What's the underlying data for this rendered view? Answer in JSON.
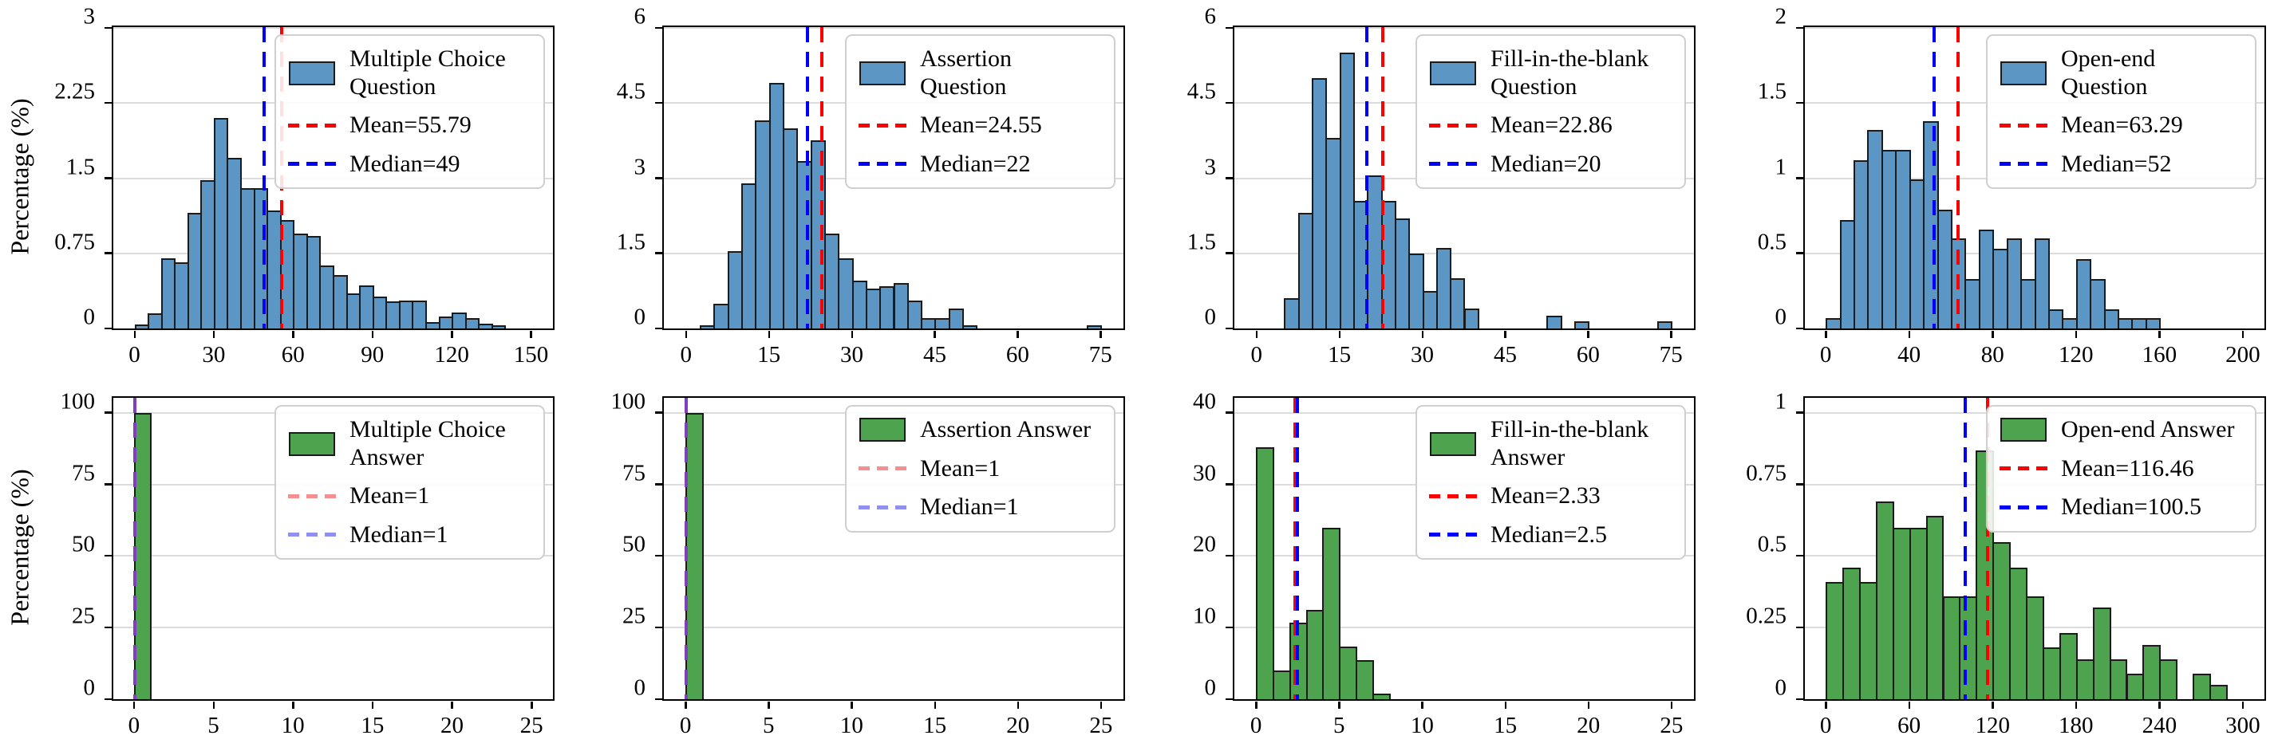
{
  "figure": {
    "ylabel": "Percentage (%)",
    "colors": {
      "question_bar_fill": "#5b96c4",
      "answer_bar_fill": "#4ea44e",
      "bar_edge": "#1b1b1b",
      "mean_line_red": "#fe0000",
      "median_line_blue": "#0000fe",
      "faded_mean_red": "#f58f8f",
      "faded_median_blue": "#9090f0",
      "overlap_purple": "#7f3fbf",
      "gridline": "#dcdcdc",
      "spine": "#000000",
      "legend_border": "#cfcfcf"
    }
  },
  "chart_data": [
    {
      "type": "bar",
      "title": "Multiple Choice Question length histogram",
      "legend": {
        "series_label": "Multiple Choice Question",
        "mean_label": "Mean=55.79",
        "median_label": "Median=49"
      },
      "mean": 55.79,
      "median": 49,
      "bar_color_key": "question_bar_fill",
      "bin_start": 0,
      "bin_width": 5,
      "values": [
        0.04,
        0.15,
        0.7,
        0.66,
        1.15,
        1.48,
        2.1,
        1.7,
        1.4,
        1.4,
        1.18,
        1.08,
        0.95,
        0.92,
        0.63,
        0.53,
        0.35,
        0.43,
        0.32,
        0.27,
        0.28,
        0.28,
        0.06,
        0.12,
        0.16,
        0.1,
        0.05,
        0.03,
        0,
        0
      ],
      "xlim": [
        -8,
        158
      ],
      "ylim": [
        0,
        3
      ],
      "xticks": [
        0,
        30,
        60,
        90,
        120,
        150
      ],
      "xtick_labels": [
        "0",
        "30",
        "60",
        "90",
        "120",
        "150"
      ],
      "yticks": [
        0,
        0.75,
        1.5,
        2.25,
        3
      ],
      "ytick_labels": [
        "0",
        "0.75",
        "1.5",
        "2.25",
        "3"
      ],
      "lines": [
        {
          "name": "mean",
          "x": 55.79,
          "color_key": "mean_line_red"
        },
        {
          "name": "median",
          "x": 49,
          "color_key": "median_line_blue"
        }
      ],
      "legend_key_colors": {
        "mean": "#fe0000",
        "median": "#0000fe"
      },
      "grid": true,
      "legend_position": "upper-right",
      "ylabel_shown": true
    },
    {
      "type": "bar",
      "title": "Assertion Question length histogram",
      "legend": {
        "series_label": "Assertion Question",
        "mean_label": "Mean=24.55",
        "median_label": "Median=22"
      },
      "mean": 24.55,
      "median": 22,
      "bar_color_key": "question_bar_fill",
      "bin_start": 0,
      "bin_width": 2.5,
      "values": [
        0,
        0.07,
        0.5,
        1.55,
        2.9,
        4.15,
        4.9,
        4.0,
        3.35,
        3.75,
        1.9,
        1.4,
        0.95,
        0.8,
        0.85,
        0.9,
        0.55,
        0.2,
        0.2,
        0.4,
        0.07,
        0,
        0,
        0,
        0,
        0,
        0,
        0,
        0,
        0.07
      ],
      "xlim": [
        -4,
        79
      ],
      "ylim": [
        0,
        6
      ],
      "xticks": [
        0,
        15,
        30,
        45,
        60,
        75
      ],
      "xtick_labels": [
        "0",
        "15",
        "30",
        "45",
        "60",
        "75"
      ],
      "yticks": [
        0,
        1.5,
        3,
        4.5,
        6
      ],
      "ytick_labels": [
        "0",
        "1.5",
        "3",
        "4.5",
        "6"
      ],
      "lines": [
        {
          "name": "mean",
          "x": 24.55,
          "color_key": "mean_line_red"
        },
        {
          "name": "median",
          "x": 22,
          "color_key": "median_line_blue"
        }
      ],
      "legend_key_colors": {
        "mean": "#fe0000",
        "median": "#0000fe"
      },
      "grid": true,
      "legend_position": "upper-right",
      "ylabel_shown": false
    },
    {
      "type": "bar",
      "title": "Fill-in-the-blank Question length histogram",
      "legend": {
        "series_label": "Fill-in-the-blank Question",
        "mean_label": "Mean=22.86",
        "median_label": "Median=20"
      },
      "mean": 22.86,
      "median": 20,
      "bar_color_key": "question_bar_fill",
      "bin_start": 0,
      "bin_width": 2.5,
      "values": [
        0,
        0,
        0.6,
        2.3,
        5.0,
        3.8,
        5.5,
        2.55,
        3.05,
        2.55,
        2.2,
        1.5,
        0.75,
        1.6,
        1.0,
        0.4,
        0,
        0,
        0,
        0,
        0,
        0.25,
        0,
        0.15,
        0,
        0,
        0,
        0,
        0,
        0.15
      ],
      "xlim": [
        -4,
        79
      ],
      "ylim": [
        0,
        6
      ],
      "xticks": [
        0,
        15,
        30,
        45,
        60,
        75
      ],
      "xtick_labels": [
        "0",
        "15",
        "30",
        "45",
        "60",
        "75"
      ],
      "yticks": [
        0,
        1.5,
        3,
        4.5,
        6
      ],
      "ytick_labels": [
        "0",
        "1.5",
        "3",
        "4.5",
        "6"
      ],
      "lines": [
        {
          "name": "mean",
          "x": 22.86,
          "color_key": "mean_line_red"
        },
        {
          "name": "median",
          "x": 20,
          "color_key": "median_line_blue"
        }
      ],
      "legend_key_colors": {
        "mean": "#fe0000",
        "median": "#0000fe"
      },
      "grid": true,
      "legend_position": "upper-right",
      "ylabel_shown": false
    },
    {
      "type": "bar",
      "title": "Open-end Question length histogram",
      "legend": {
        "series_label": "Open-end Question",
        "mean_label": "Mean=63.29",
        "median_label": "Median=52"
      },
      "mean": 63.29,
      "median": 52,
      "bar_color_key": "question_bar_fill",
      "bin_start": 0,
      "bin_width": 6.667,
      "values": [
        0.07,
        0.72,
        1.12,
        1.32,
        1.19,
        1.19,
        0.99,
        1.38,
        0.79,
        0.6,
        0.33,
        0.66,
        0.53,
        0.6,
        0.33,
        0.6,
        0.13,
        0.07,
        0.46,
        0.33,
        0.13,
        0.07,
        0.07,
        0.07,
        0,
        0,
        0,
        0,
        0,
        0
      ],
      "xlim": [
        -10,
        210
      ],
      "ylim": [
        0,
        2
      ],
      "xticks": [
        0,
        40,
        80,
        120,
        160,
        200
      ],
      "xtick_labels": [
        "0",
        "40",
        "80",
        "120",
        "160",
        "200"
      ],
      "yticks": [
        0,
        0.5,
        1,
        1.5,
        2
      ],
      "ytick_labels": [
        "0",
        "0.5",
        "1",
        "1.5",
        "2"
      ],
      "lines": [
        {
          "name": "mean",
          "x": 63.29,
          "color_key": "mean_line_red"
        },
        {
          "name": "median",
          "x": 52,
          "color_key": "median_line_blue"
        }
      ],
      "legend_key_colors": {
        "mean": "#fe0000",
        "median": "#0000fe"
      },
      "grid": true,
      "legend_position": "upper-right",
      "ylabel_shown": false
    },
    {
      "type": "bar",
      "title": "Multiple Choice Answer length histogram",
      "legend": {
        "series_label": "Multiple Choice Answer",
        "mean_label": "Mean=1",
        "median_label": "Median=1"
      },
      "mean": 1,
      "median": 1,
      "bar_color_key": "answer_bar_fill",
      "bin_start": 0,
      "bin_width": 1,
      "values": [
        100,
        0,
        0,
        0,
        0,
        0,
        0,
        0,
        0,
        0,
        0,
        0,
        0,
        0,
        0,
        0,
        0,
        0,
        0,
        0,
        0,
        0,
        0,
        0,
        0
      ],
      "xlim": [
        -1.3,
        26.3
      ],
      "ylim": [
        0,
        105
      ],
      "xticks": [
        0,
        5,
        10,
        15,
        20,
        25
      ],
      "xtick_labels": [
        "0",
        "5",
        "10",
        "15",
        "20",
        "25"
      ],
      "yticks": [
        0,
        25,
        50,
        75,
        100
      ],
      "ytick_labels": [
        "0",
        "25",
        "50",
        "75",
        "100"
      ],
      "lines": [
        {
          "name": "mean-median-overlap",
          "x": 0.05,
          "color_key": "overlap_purple"
        }
      ],
      "legend_key_colors": {
        "mean": "#f58f8f",
        "median": "#9090f0"
      },
      "grid": true,
      "legend_position": "upper-right",
      "ylabel_shown": true
    },
    {
      "type": "bar",
      "title": "Assertion Answer length histogram",
      "legend": {
        "series_label": "Assertion Answer",
        "mean_label": "Mean=1",
        "median_label": "Median=1"
      },
      "mean": 1,
      "median": 1,
      "bar_color_key": "answer_bar_fill",
      "bin_start": 0,
      "bin_width": 1,
      "values": [
        100,
        0,
        0,
        0,
        0,
        0,
        0,
        0,
        0,
        0,
        0,
        0,
        0,
        0,
        0,
        0,
        0,
        0,
        0,
        0,
        0,
        0,
        0,
        0,
        0
      ],
      "xlim": [
        -1.3,
        26.3
      ],
      "ylim": [
        0,
        105
      ],
      "xticks": [
        0,
        5,
        10,
        15,
        20,
        25
      ],
      "xtick_labels": [
        "0",
        "5",
        "10",
        "15",
        "20",
        "25"
      ],
      "yticks": [
        0,
        25,
        50,
        75,
        100
      ],
      "ytick_labels": [
        "0",
        "25",
        "50",
        "75",
        "100"
      ],
      "lines": [
        {
          "name": "mean-median-overlap",
          "x": 0.05,
          "color_key": "overlap_purple"
        }
      ],
      "legend_key_colors": {
        "mean": "#f58f8f",
        "median": "#9090f0"
      },
      "grid": true,
      "legend_position": "upper-right",
      "ylabel_shown": false
    },
    {
      "type": "bar",
      "title": "Fill-in-the-blank Answer length histogram",
      "legend": {
        "series_label": "Fill-in-the-blank Answer",
        "mean_label": "Mean=2.33",
        "median_label": "Median=2.5"
      },
      "mean": 2.33,
      "median": 2.5,
      "bar_color_key": "answer_bar_fill",
      "bin_start": 0,
      "bin_width": 1,
      "values": [
        35.2,
        4.0,
        10.7,
        12.5,
        24.0,
        7.4,
        5.5,
        0.8,
        0,
        0,
        0,
        0,
        0,
        0,
        0,
        0,
        0,
        0,
        0,
        0,
        0,
        0,
        0,
        0,
        0
      ],
      "xlim": [
        -1.3,
        26.3
      ],
      "ylim": [
        0,
        42
      ],
      "xticks": [
        0,
        5,
        10,
        15,
        20,
        25
      ],
      "xtick_labels": [
        "0",
        "5",
        "10",
        "15",
        "20",
        "25"
      ],
      "yticks": [
        0,
        10,
        20,
        30,
        40
      ],
      "ytick_labels": [
        "0",
        "10",
        "20",
        "30",
        "40"
      ],
      "lines": [
        {
          "name": "mean",
          "x": 2.33,
          "color_key": "mean_line_red"
        },
        {
          "name": "median",
          "x": 2.5,
          "color_key": "median_line_blue"
        }
      ],
      "legend_key_colors": {
        "mean": "#fe0000",
        "median": "#0000fe"
      },
      "grid": true,
      "legend_position": "upper-right",
      "ylabel_shown": false
    },
    {
      "type": "bar",
      "title": "Open-end Answer length histogram",
      "legend": {
        "series_label": "Open-end Answer",
        "mean_label": "Mean=116.46",
        "median_label": "Median=100.5"
      },
      "mean": 116.46,
      "median": 100.5,
      "bar_color_key": "answer_bar_fill",
      "bin_start": 0,
      "bin_width": 12,
      "values": [
        0.41,
        0.46,
        0.41,
        0.69,
        0.6,
        0.6,
        0.64,
        0.36,
        0.36,
        0.87,
        0.55,
        0.46,
        0.36,
        0.18,
        0.23,
        0.14,
        0.32,
        0.14,
        0.09,
        0.19,
        0.14,
        0,
        0.09,
        0.05,
        0
      ],
      "xlim": [
        -15,
        315
      ],
      "ylim": [
        0,
        1.05
      ],
      "xticks": [
        0,
        60,
        120,
        180,
        240,
        300
      ],
      "xtick_labels": [
        "0",
        "60",
        "120",
        "180",
        "240",
        "300"
      ],
      "yticks": [
        0,
        0.25,
        0.5,
        0.75,
        1
      ],
      "ytick_labels": [
        "0",
        "0.25",
        "0.5",
        "0.75",
        "1"
      ],
      "lines": [
        {
          "name": "mean",
          "x": 116.46,
          "color_key": "mean_line_red"
        },
        {
          "name": "median",
          "x": 100.5,
          "color_key": "median_line_blue"
        }
      ],
      "legend_key_colors": {
        "mean": "#fe0000",
        "median": "#0000fe"
      },
      "grid": true,
      "legend_position": "upper-right",
      "ylabel_shown": false
    }
  ]
}
